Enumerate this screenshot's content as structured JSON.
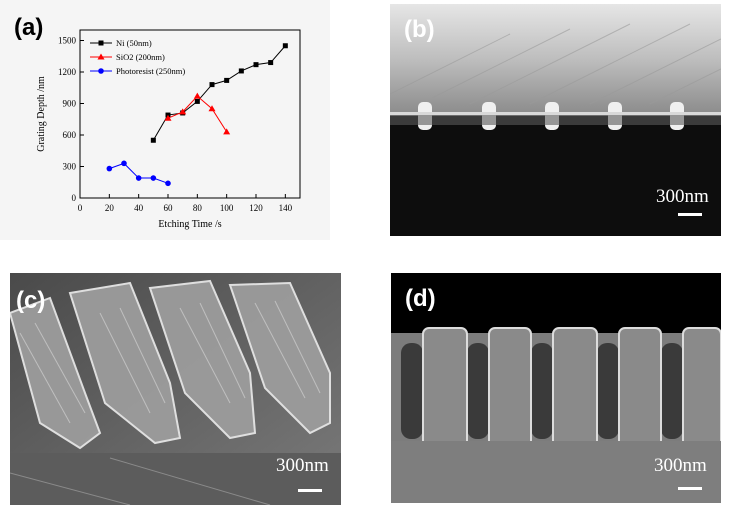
{
  "figure": {
    "panels": [
      {
        "label": "(a)"
      },
      {
        "label": "(b)",
        "scale_bar": "300nm"
      },
      {
        "label": "(c)",
        "scale_bar": "300nm"
      },
      {
        "label": "(d)",
        "scale_bar": "300nm"
      }
    ]
  },
  "chart_data": {
    "type": "line",
    "xlabel": "Etching Time /s",
    "ylabel": "Grating Depth /nm",
    "xlim": [
      0,
      150
    ],
    "ylim": [
      0,
      1600
    ],
    "xticks": [
      "0",
      "20",
      "40",
      "60",
      "80",
      "100",
      "120",
      "140"
    ],
    "yticks": [
      "0",
      "300",
      "600",
      "900",
      "1200",
      "1500"
    ],
    "legend_position": "top-left",
    "grid": false,
    "series": [
      {
        "name": "Ni (50nm)",
        "color": "#000000",
        "marker": "square",
        "x": [
          50,
          60,
          70,
          80,
          90,
          100,
          110,
          120,
          130,
          140
        ],
        "y": [
          550,
          790,
          810,
          920,
          1080,
          1120,
          1210,
          1270,
          1290,
          1450
        ]
      },
      {
        "name": "SiO2 (200nm)",
        "color": "#ff0000",
        "marker": "triangle",
        "x": [
          60,
          70,
          80,
          90,
          100
        ],
        "y": [
          760,
          820,
          970,
          850,
          630
        ]
      },
      {
        "name": "Photoresist (250nm)",
        "color": "#0000ff",
        "marker": "circle",
        "x": [
          20,
          30,
          40,
          50,
          60
        ],
        "y": [
          280,
          330,
          190,
          190,
          140
        ]
      }
    ]
  }
}
